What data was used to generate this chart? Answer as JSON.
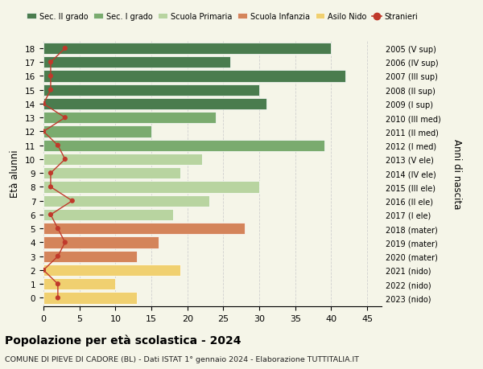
{
  "ages": [
    18,
    17,
    16,
    15,
    14,
    13,
    12,
    11,
    10,
    9,
    8,
    7,
    6,
    5,
    4,
    3,
    2,
    1,
    0
  ],
  "years": [
    "2005 (V sup)",
    "2006 (IV sup)",
    "2007 (III sup)",
    "2008 (II sup)",
    "2009 (I sup)",
    "2010 (III med)",
    "2011 (II med)",
    "2012 (I med)",
    "2013 (V ele)",
    "2014 (IV ele)",
    "2015 (III ele)",
    "2016 (II ele)",
    "2017 (I ele)",
    "2018 (mater)",
    "2019 (mater)",
    "2020 (mater)",
    "2021 (nido)",
    "2022 (nido)",
    "2023 (nido)"
  ],
  "values": [
    40,
    26,
    42,
    30,
    31,
    24,
    15,
    39,
    22,
    19,
    30,
    23,
    18,
    28,
    16,
    13,
    19,
    10,
    13
  ],
  "stranieri": [
    3,
    1,
    1,
    1,
    0,
    3,
    0,
    2,
    3,
    1,
    1,
    4,
    1,
    2,
    3,
    2,
    0,
    2,
    2
  ],
  "bar_colors": [
    "#4a7c4e",
    "#4a7c4e",
    "#4a7c4e",
    "#4a7c4e",
    "#4a7c4e",
    "#7aab6e",
    "#7aab6e",
    "#7aab6e",
    "#b8d4a0",
    "#b8d4a0",
    "#b8d4a0",
    "#b8d4a0",
    "#b8d4a0",
    "#d4845a",
    "#d4845a",
    "#d4845a",
    "#f0d070",
    "#f0d070",
    "#f0d070"
  ],
  "legend_labels": [
    "Sec. II grado",
    "Sec. I grado",
    "Scuola Primaria",
    "Scuola Infanzia",
    "Asilo Nido",
    "Stranieri"
  ],
  "legend_colors": [
    "#4a7c4e",
    "#7aab6e",
    "#b8d4a0",
    "#d4845a",
    "#f0d070",
    "#c0392b"
  ],
  "stranieri_color": "#c0392b",
  "title": "Popolazione per età scolastica - 2024",
  "subtitle": "COMUNE DI PIEVE DI CADORE (BL) - Dati ISTAT 1° gennaio 2024 - Elaborazione TUTTITALIA.IT",
  "ylabel": "Età alunni",
  "right_ylabel": "Anni di nascita",
  "xlim": [
    0,
    47
  ],
  "xticks": [
    0,
    5,
    10,
    15,
    20,
    25,
    30,
    35,
    40,
    45
  ],
  "background_color": "#f5f5e8",
  "grid_color": "#d0d0d0"
}
